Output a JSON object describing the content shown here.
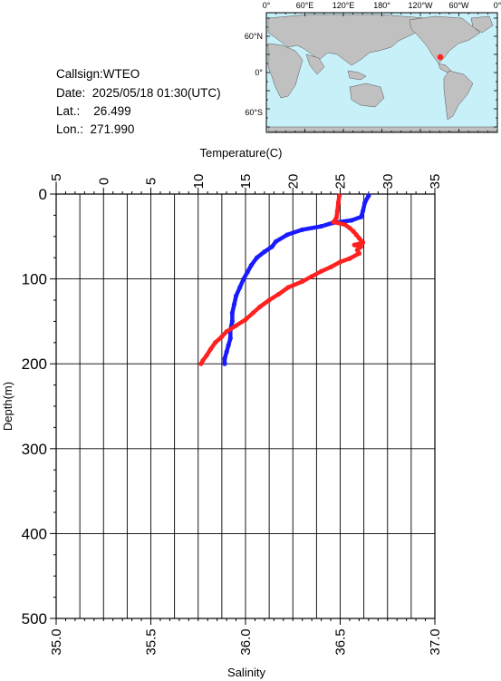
{
  "station": {
    "callsign_label": "Callsign:",
    "callsign": "WTEO",
    "date_label": "Date:",
    "date": "2025/05/18 01:30(UTC)",
    "lat_label": "Lat.:",
    "lat": "26.499",
    "lon_label": "Lon.:",
    "lon": "271.990"
  },
  "map": {
    "top_labels": [
      "0°",
      "60°E",
      "120°E",
      "180°",
      "120°W",
      "60°W",
      "0°"
    ],
    "left_labels": [
      "60°N",
      "0°",
      "60°S"
    ],
    "ocean_color": "#c8f0f8",
    "land_color": "#c0c0c0",
    "marker_color": "#ff2020"
  },
  "chart_data": [
    {
      "type": "line",
      "title": "",
      "xlabel": "Temperature(C)",
      "ylabel": "Depth(m)",
      "xlim": [
        -5,
        35
      ],
      "ylim": [
        500,
        0
      ],
      "xticks": [
        "−5",
        "0",
        "5",
        "10",
        "15",
        "20",
        "25",
        "30",
        "35"
      ],
      "yticks": [
        "0",
        "100",
        "200",
        "300",
        "400",
        "500"
      ],
      "grid": true,
      "series": [
        {
          "color": "#ff2020",
          "points": [
            [
              24.9,
              2
            ],
            [
              24.8,
              10
            ],
            [
              24.7,
              20
            ],
            [
              24.6,
              28
            ],
            [
              24.3,
              33
            ],
            [
              25.5,
              36
            ],
            [
              26.0,
              40
            ],
            [
              26.4,
              44
            ],
            [
              26.7,
              48
            ],
            [
              27.0,
              52
            ],
            [
              27.4,
              57
            ],
            [
              26.5,
              60
            ],
            [
              27.2,
              62
            ],
            [
              26.8,
              66
            ],
            [
              27.0,
              70
            ],
            [
              26.0,
              76
            ],
            [
              25.0,
              80
            ],
            [
              24.0,
              86
            ],
            [
              23.0,
              91
            ],
            [
              22.0,
              97
            ],
            [
              21.0,
              103
            ],
            [
              19.5,
              110
            ],
            [
              18.5,
              118
            ],
            [
              17.5,
              125
            ],
            [
              16.5,
              133
            ],
            [
              15.8,
              140
            ],
            [
              15.0,
              148
            ],
            [
              14.0,
              155
            ],
            [
              13.0,
              162
            ],
            [
              12.5,
              168
            ],
            [
              11.8,
              175
            ],
            [
              11.3,
              183
            ],
            [
              10.9,
              190
            ],
            [
              10.5,
              196
            ],
            [
              10.3,
              200
            ]
          ]
        }
      ]
    },
    {
      "type": "line",
      "title": "",
      "xlabel": "Salinity",
      "xlim": [
        35.0,
        37.0
      ],
      "xticks": [
        "35.0",
        "35.5",
        "36.0",
        "36.5",
        "37.0"
      ],
      "series": [
        {
          "color": "#1a1aff",
          "points": [
            [
              36.65,
              2
            ],
            [
              36.63,
              10
            ],
            [
              36.62,
              20
            ],
            [
              36.61,
              27
            ],
            [
              36.56,
              31
            ],
            [
              36.46,
              34
            ],
            [
              36.4,
              38
            ],
            [
              36.3,
              42
            ],
            [
              36.22,
              48
            ],
            [
              36.16,
              56
            ],
            [
              36.14,
              62
            ],
            [
              36.1,
              68
            ],
            [
              36.06,
              75
            ],
            [
              36.03,
              84
            ],
            [
              36.01,
              92
            ],
            [
              35.99,
              100
            ],
            [
              35.97,
              110
            ],
            [
              35.95,
              120
            ],
            [
              35.94,
              130
            ],
            [
              35.93,
              140
            ],
            [
              35.93,
              150
            ],
            [
              35.92,
              160
            ],
            [
              35.92,
              170
            ],
            [
              35.91,
              178
            ],
            [
              35.9,
              186
            ],
            [
              35.89,
              194
            ],
            [
              35.89,
              200
            ]
          ]
        }
      ]
    }
  ]
}
